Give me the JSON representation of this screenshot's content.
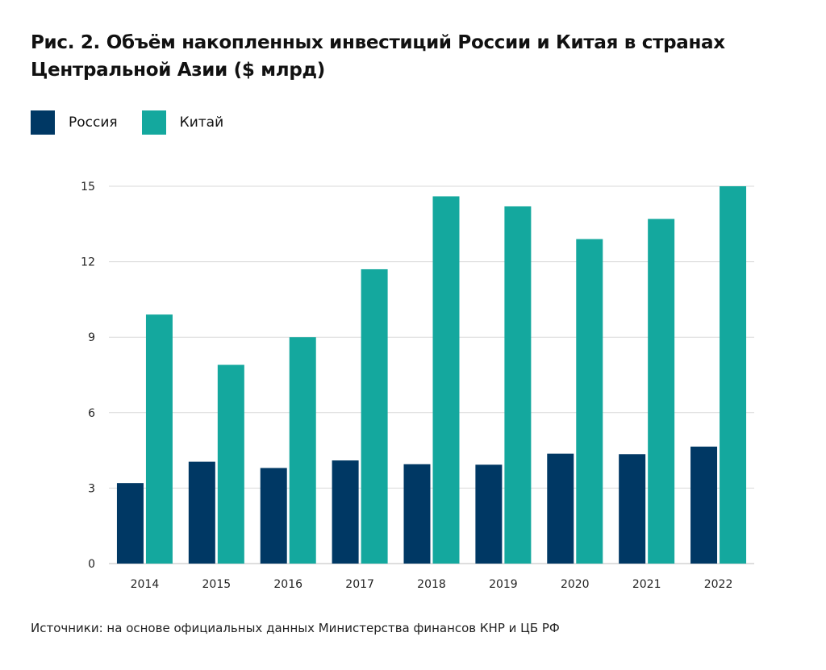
{
  "title": {
    "line1": "Рис. 2. Объём накопленных инвестиций России и Китая в странах",
    "line2": "Центральной Азии ($ млрд)"
  },
  "source": "Источники: на основе официальных данных Министерства финансов КНР и ЦБ РФ",
  "colors": {
    "russia": "#003864",
    "china": "#14A89E",
    "grid": "#d9d9d9",
    "text": "#111111"
  },
  "chart_data": {
    "type": "bar",
    "title": "Рис. 2. Объём накопленных инвестиций России и Китая в странах Центральной Азии ($ млрд)",
    "xlabel": "",
    "ylabel": "",
    "ylim": [
      0,
      15
    ],
    "yticks": [
      "0",
      "3",
      "6",
      "9",
      "12",
      "15"
    ],
    "grid": true,
    "legend_position": "top-left",
    "categories": [
      "2014",
      "2015",
      "2016",
      "2017",
      "2018",
      "2019",
      "2020",
      "2021",
      "2022"
    ],
    "series": [
      {
        "name": "Россия",
        "color": "#003864",
        "values": [
          3.2,
          4.05,
          3.8,
          4.1,
          3.95,
          3.93,
          4.37,
          4.35,
          4.65
        ]
      },
      {
        "name": "Китай",
        "color": "#14A89E",
        "values": [
          9.9,
          7.9,
          9.0,
          11.7,
          14.6,
          14.2,
          12.9,
          13.7,
          15.0
        ]
      }
    ]
  }
}
